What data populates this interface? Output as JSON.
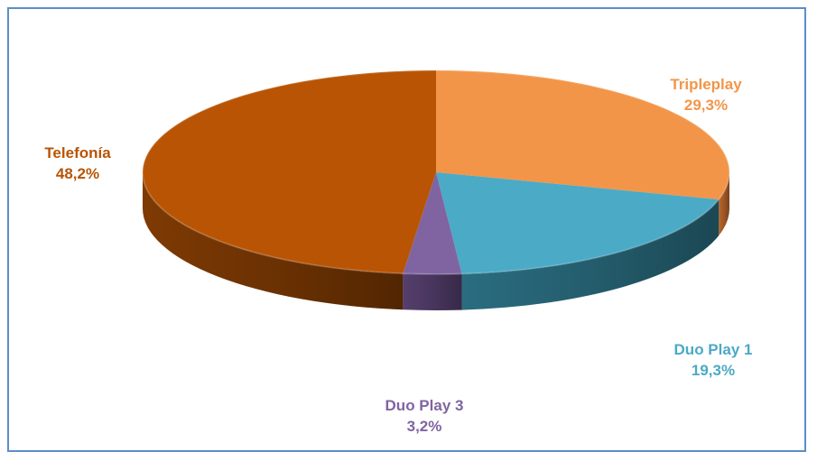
{
  "chart_data": {
    "type": "pie",
    "style": "3d",
    "title": "",
    "slices": [
      {
        "label": "Tripleplay",
        "value": 29.3,
        "value_text": "29,3%",
        "color": "#F29549",
        "side_color": "#b8652a"
      },
      {
        "label": "Duo Play 1",
        "value": 19.3,
        "value_text": "19,3%",
        "color": "#4BAAC6",
        "side_color": "#2a6d80"
      },
      {
        "label": "Duo Play 3",
        "value": 3.2,
        "value_text": "3,2%",
        "color": "#8064A2",
        "side_color": "#553f6e"
      },
      {
        "label": "Telefonía",
        "value": 48.2,
        "value_text": "48,2%",
        "color": "#B85404",
        "side_color": "#7e3a03"
      }
    ],
    "label_colors": {
      "Tripleplay": "#F29549",
      "Duo Play 1": "#4BAAC6",
      "Duo Play 3": "#8064A2",
      "Telefonía": "#B85404"
    }
  }
}
